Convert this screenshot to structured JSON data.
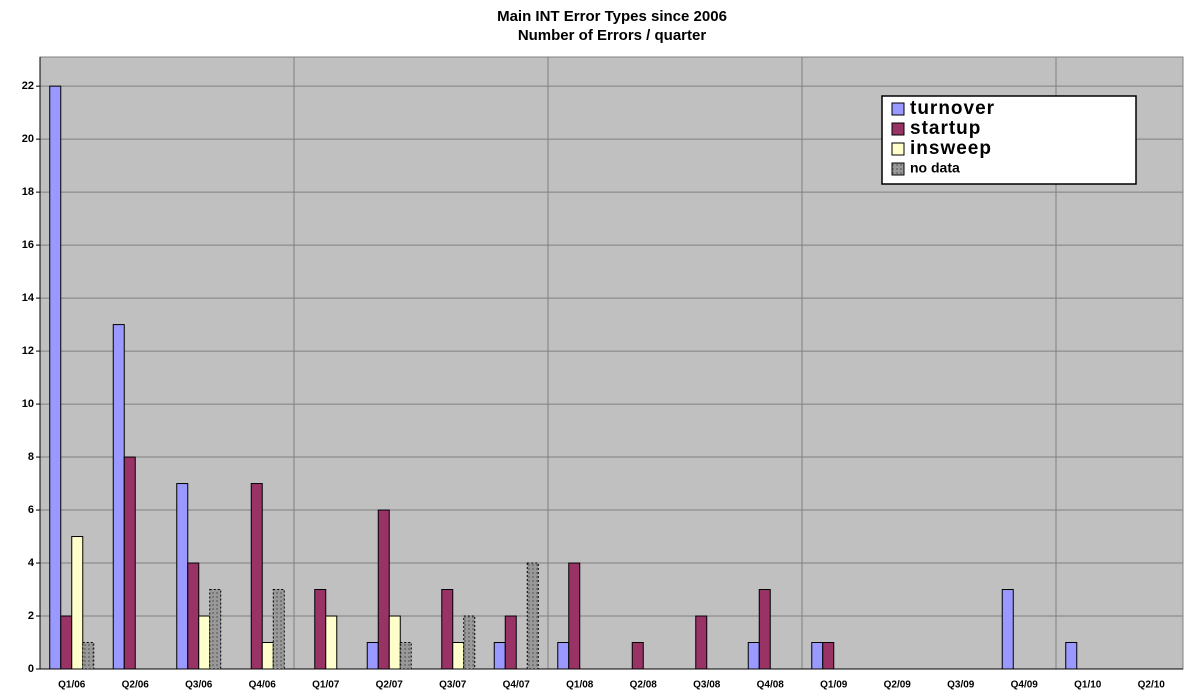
{
  "chart_data": {
    "type": "bar",
    "title": "Main INT Error Types since 2006",
    "subtitle": "Number of Errors / quarter",
    "categories": [
      "Q1/06",
      "Q2/06",
      "Q3/06",
      "Q4/06",
      "Q1/07",
      "Q2/07",
      "Q3/07",
      "Q4/07",
      "Q1/08",
      "Q2/08",
      "Q3/08",
      "Q4/08",
      "Q1/09",
      "Q2/09",
      "Q3/09",
      "Q4/09",
      "Q1/10",
      "Q2/10"
    ],
    "series": [
      {
        "name": "turnover",
        "color": "#9999ff",
        "values": [
          22,
          13,
          7,
          0,
          0,
          1,
          0,
          1,
          1,
          0,
          0,
          1,
          1,
          0,
          0,
          3,
          1,
          0
        ]
      },
      {
        "name": "startup",
        "color": "#993366",
        "values": [
          2,
          8,
          4,
          7,
          3,
          6,
          3,
          2,
          4,
          1,
          2,
          3,
          1,
          0,
          0,
          0,
          0,
          0
        ]
      },
      {
        "name": "insweep",
        "color": "#ffffcc",
        "values": [
          5,
          0,
          2,
          1,
          2,
          2,
          1,
          0,
          0,
          0,
          0,
          0,
          0,
          0,
          0,
          0,
          0,
          0
        ]
      },
      {
        "name": "no data",
        "color": "#999999",
        "values": [
          1,
          0,
          3,
          3,
          0,
          1,
          2,
          4,
          0,
          0,
          0,
          0,
          0,
          0,
          0,
          0,
          0,
          0
        ]
      }
    ],
    "ylim": [
      0,
      23.1
    ],
    "yticks": [
      0,
      2,
      4,
      6,
      8,
      10,
      12,
      14,
      16,
      18,
      20,
      22
    ],
    "grid": true,
    "legend": "top-right"
  }
}
